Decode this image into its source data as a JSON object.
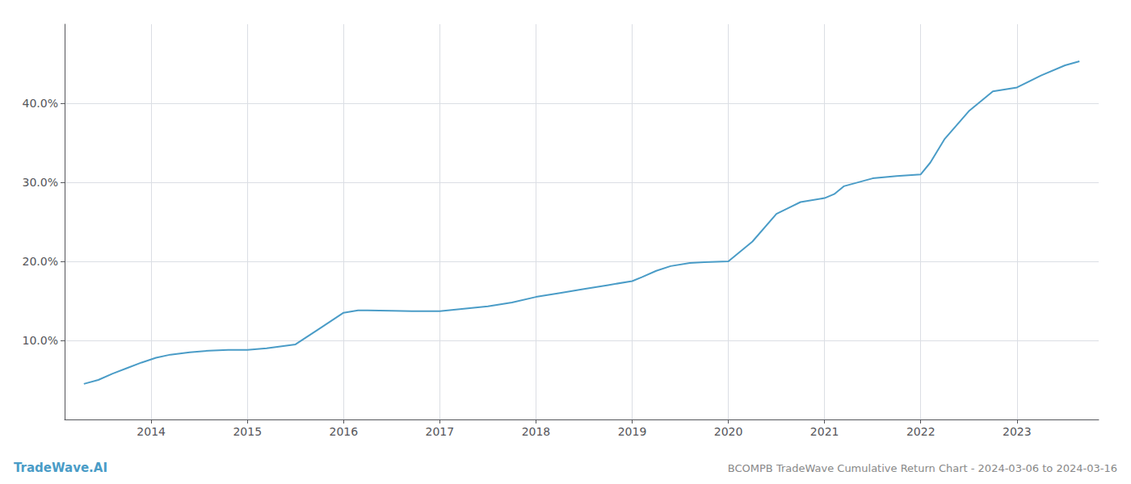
{
  "chart_data": {
    "type": "line",
    "title": "BCOMPB TradeWave Cumulative Return Chart - 2024-03-06 to 2024-03-16",
    "annotations": [
      {
        "text": "TradeWave.AI",
        "color": "#4a9cc7"
      }
    ],
    "x": [
      2013.3,
      2013.45,
      2013.6,
      2013.75,
      2013.9,
      2014.05,
      2014.2,
      2014.4,
      2014.6,
      2014.8,
      2015.0,
      2015.2,
      2015.5,
      2015.75,
      2016.0,
      2016.1,
      2016.15,
      2016.25,
      2016.5,
      2016.75,
      2017.0,
      2017.25,
      2017.5,
      2017.75,
      2018.0,
      2018.25,
      2018.5,
      2018.75,
      2019.0,
      2019.1,
      2019.25,
      2019.4,
      2019.6,
      2019.75,
      2020.0,
      2020.25,
      2020.5,
      2020.75,
      2021.0,
      2021.1,
      2021.2,
      2021.5,
      2021.75,
      2022.0,
      2022.1,
      2022.25,
      2022.5,
      2022.75,
      2023.0,
      2023.25,
      2023.5,
      2023.65
    ],
    "values": [
      4.5,
      5.0,
      5.8,
      6.5,
      7.2,
      7.8,
      8.2,
      8.5,
      8.7,
      8.8,
      8.8,
      9.0,
      9.5,
      11.5,
      13.5,
      13.7,
      13.8,
      13.8,
      13.75,
      13.7,
      13.7,
      14.0,
      14.3,
      14.8,
      15.5,
      16.0,
      16.5,
      17.0,
      17.5,
      18.0,
      18.8,
      19.4,
      19.8,
      19.9,
      20.0,
      22.5,
      26.0,
      27.5,
      28.0,
      28.5,
      29.5,
      30.5,
      30.8,
      31.0,
      32.5,
      35.5,
      39.0,
      41.5,
      42.0,
      43.5,
      44.8,
      45.3
    ],
    "color": "#4a9cc7",
    "xlim": [
      2013.1,
      2023.85
    ],
    "xticks": [
      2014,
      2015,
      2016,
      2017,
      2018,
      2019,
      2020,
      2021,
      2022,
      2023
    ],
    "ylim": [
      0,
      50
    ],
    "yticks": [
      {
        "value": 10.0,
        "label": "10.0%"
      },
      {
        "value": 20.0,
        "label": "20.0%"
      },
      {
        "value": 30.0,
        "label": "30.0%"
      },
      {
        "value": 40.0,
        "label": "40.0%"
      }
    ],
    "grid": true
  }
}
